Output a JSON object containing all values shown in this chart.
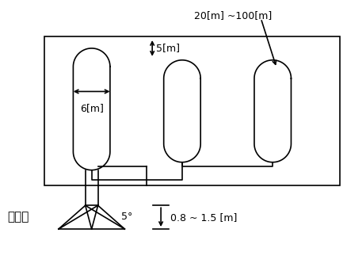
{
  "background_color": "#ffffff",
  "line_color": "#000000",
  "label_20_100": "20[m] ~100[m]",
  "label_5m": "5[m]",
  "label_6m": "6[m]",
  "label_detector": "검출부",
  "label_5deg": "5°",
  "label_height": "0.8 ~ 1.5 [m]",
  "figsize": [
    4.38,
    3.42
  ],
  "dpi": 100
}
